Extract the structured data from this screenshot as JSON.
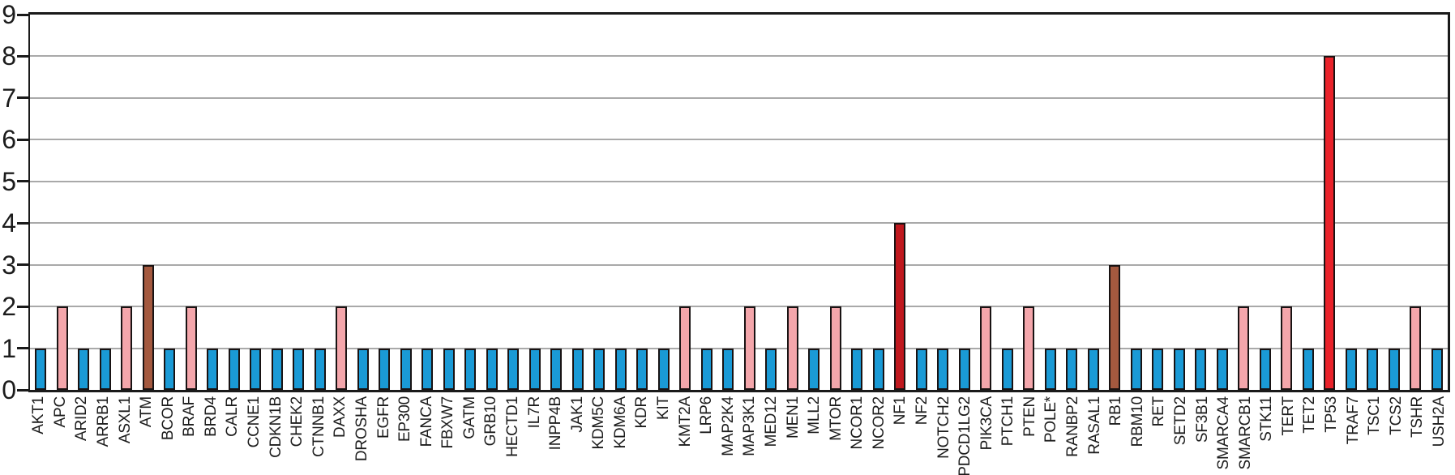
{
  "chart_data": {
    "type": "bar",
    "title": "",
    "xlabel": "",
    "ylabel": "",
    "ylim": [
      0,
      9
    ],
    "yticks": [
      0,
      1,
      2,
      3,
      4,
      5,
      6,
      7,
      8,
      9
    ],
    "grid": "horizontal",
    "legend": "none",
    "palette": {
      "blue": "#1a9ad6",
      "pink": "#f4a6ab",
      "brown": "#a4593f",
      "dark_red": "#c0181e",
      "bright_red": "#e9222a"
    },
    "categories": [
      "AKT1",
      "APC",
      "ARID2",
      "ARRB1",
      "ASXL1",
      "ATM",
      "BCOR",
      "BRAF",
      "BRD4",
      "CALR",
      "CCNE1",
      "CDKN1B",
      "CHEK2",
      "CTNNB1",
      "DAXX",
      "DROSHA",
      "EGFR",
      "EP300",
      "FANCA",
      "FBXW7",
      "GATM",
      "GRB10",
      "HECTD1",
      "IL7R",
      "INPP4B",
      "JAK1",
      "KDM5C",
      "KDM6A",
      "KDR",
      "KIT",
      "KMT2A",
      "LRP6",
      "MAP2K4",
      "MAP3K1",
      "MED12",
      "MEN1",
      "MLL2",
      "MTOR",
      "NCOR1",
      "NCOR2",
      "NF1",
      "NF2",
      "NOTCH2",
      "PDCD1LG2",
      "PIK3CA",
      "PTCH1",
      "PTEN",
      "POLE*",
      "RANBP2",
      "RASAL1",
      "RB1",
      "RBM10",
      "RET",
      "SETD2",
      "SF3B1",
      "SMARCA4",
      "SMARCB1",
      "STK11",
      "TERT",
      "TET2",
      "TP53",
      "TRAF7",
      "TSC1",
      "TCS2",
      "TSHR",
      "USH2A"
    ],
    "values": [
      1,
      2,
      1,
      1,
      2,
      3,
      1,
      2,
      1,
      1,
      1,
      1,
      1,
      1,
      2,
      1,
      1,
      1,
      1,
      1,
      1,
      1,
      1,
      1,
      1,
      1,
      1,
      1,
      1,
      1,
      2,
      1,
      1,
      2,
      1,
      2,
      1,
      2,
      1,
      1,
      4,
      1,
      1,
      1,
      2,
      1,
      2,
      1,
      1,
      1,
      3,
      1,
      1,
      1,
      1,
      1,
      2,
      1,
      2,
      1,
      8,
      1,
      1,
      1,
      2,
      1
    ],
    "colors": [
      "blue",
      "pink",
      "blue",
      "blue",
      "pink",
      "brown",
      "blue",
      "pink",
      "blue",
      "blue",
      "blue",
      "blue",
      "blue",
      "blue",
      "pink",
      "blue",
      "blue",
      "blue",
      "blue",
      "blue",
      "blue",
      "blue",
      "blue",
      "blue",
      "blue",
      "blue",
      "blue",
      "blue",
      "blue",
      "blue",
      "pink",
      "blue",
      "blue",
      "pink",
      "blue",
      "pink",
      "blue",
      "pink",
      "blue",
      "blue",
      "dark_red",
      "blue",
      "blue",
      "blue",
      "pink",
      "blue",
      "pink",
      "blue",
      "blue",
      "blue",
      "brown",
      "blue",
      "blue",
      "blue",
      "blue",
      "blue",
      "pink",
      "blue",
      "pink",
      "blue",
      "bright_red",
      "blue",
      "blue",
      "blue",
      "pink",
      "blue"
    ]
  }
}
